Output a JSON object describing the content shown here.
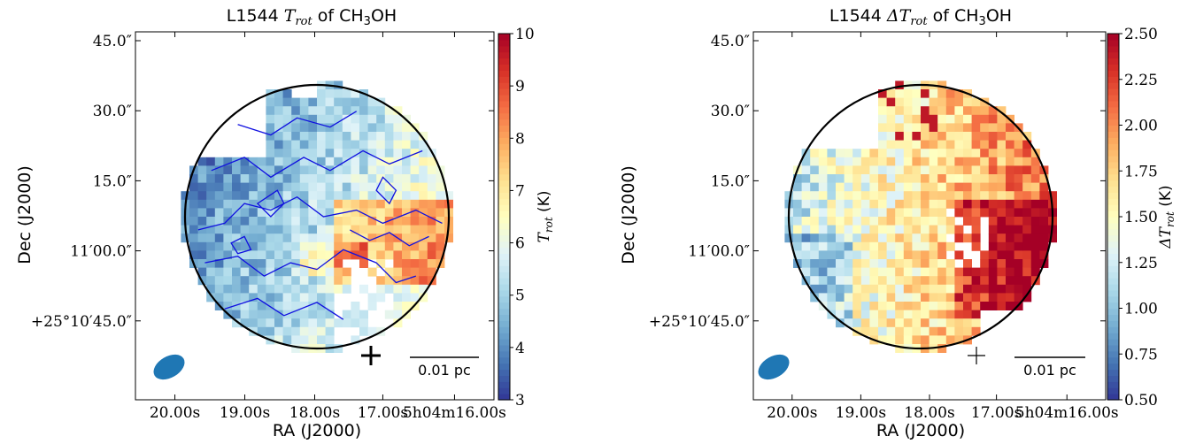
{
  "chart_data": [
    {
      "type": "heatmap",
      "title": "L1544 T_rot of CH3OH",
      "title_parts": {
        "prefix": "L1544 ",
        "sym": "T",
        "sub": "rot",
        "mid": " of CH",
        "sub2": "3",
        "suffix": "OH"
      },
      "xlabel": "RA (J2000)",
      "ylabel": "Dec (J2000)",
      "x_ticks": [
        "20.00s",
        "19.00s",
        "18.00s",
        "17.00s",
        "5h04m16.00s"
      ],
      "y_ticks": [
        "45.0″",
        "30.0″",
        "15.0″",
        "11′00.0″",
        "+25°10′45.0″"
      ],
      "colorbar_label": "T_rot (K)",
      "colorbar_ticks": [
        "3",
        "4",
        "5",
        "6",
        "7",
        "8",
        "9",
        "10"
      ],
      "vmin": 3,
      "vmax": 10,
      "colormap": "RdYlBu_r",
      "contours": true,
      "contour_color": "#1010e0",
      "scale_bar": "0.01 pc",
      "beam_color": "#1f77b4",
      "marker": "+"
    },
    {
      "type": "heatmap",
      "title": "L1544 ΔT_rot of CH3OH",
      "title_parts": {
        "prefix": "L1544 ",
        "sym": "ΔT",
        "sub": "rot",
        "mid": " of CH",
        "sub2": "3",
        "suffix": "OH"
      },
      "xlabel": "RA (J2000)",
      "ylabel": "Dec (J2000)",
      "x_ticks": [
        "20.00s",
        "19.00s",
        "18.00s",
        "17.00s",
        "5h04m16.00s"
      ],
      "y_ticks": [
        "45.0″",
        "30.0″",
        "15.0″",
        "11′00.0″",
        "+25°10′45.0″"
      ],
      "colorbar_label": "ΔT_rot (K)",
      "colorbar_ticks": [
        "0.50",
        "0.75",
        "1.00",
        "1.25",
        "1.50",
        "1.75",
        "2.00",
        "2.25",
        "2.50"
      ],
      "vmin": 0.5,
      "vmax": 2.5,
      "colormap": "RdYlBu_r",
      "contours": false,
      "scale_bar": "0.01 pc",
      "beam_color": "#1f77b4",
      "marker": "+"
    }
  ],
  "colors": {
    "circle": "#000000",
    "frame": "#000000"
  }
}
